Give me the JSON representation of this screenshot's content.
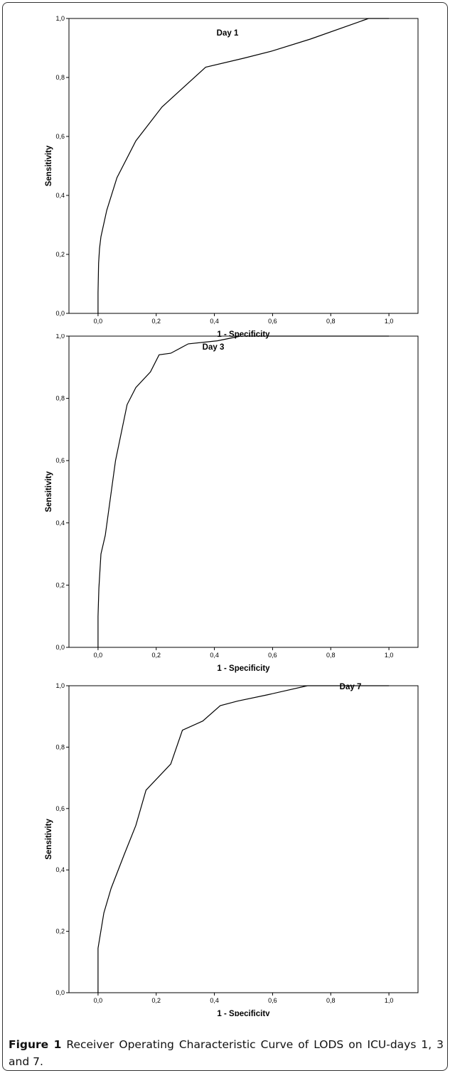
{
  "chart_data": [
    {
      "type": "line",
      "title": "Day 1",
      "xlabel": "1 - Specificity",
      "ylabel": "Sensitivity",
      "xlim": [
        -0.1,
        1.1
      ],
      "ylim": [
        0,
        1
      ],
      "xticks": [
        "0,0",
        "0,2",
        "0,4",
        "0,6",
        "0,8",
        "1,0"
      ],
      "yticks": [
        "0,0",
        "0,2",
        "0,4",
        "0,6",
        "0,8",
        "1,0"
      ],
      "grid": false,
      "x": [
        0,
        0,
        0.002,
        0.005,
        0.01,
        0.03,
        0.065,
        0.13,
        0.22,
        0.37,
        0.5,
        0.6,
        0.73,
        0.93,
        1.0
      ],
      "y": [
        0,
        0.07,
        0.17,
        0.22,
        0.26,
        0.35,
        0.46,
        0.585,
        0.7,
        0.835,
        0.865,
        0.89,
        0.93,
        1.0,
        1.0
      ]
    },
    {
      "type": "line",
      "title": "Day 3",
      "xlabel": "1 - Specificity",
      "ylabel": "Sensitivity",
      "xlim": [
        -0.1,
        1.1
      ],
      "ylim": [
        0,
        1
      ],
      "xticks": [
        "0,0",
        "0,2",
        "0,4",
        "0,6",
        "0,8",
        "1,0"
      ],
      "yticks": [
        "0,0",
        "0,2",
        "0,4",
        "0,6",
        "0,8",
        "1,0"
      ],
      "grid": false,
      "x": [
        0,
        0,
        0.003,
        0.01,
        0.025,
        0.06,
        0.1,
        0.13,
        0.18,
        0.21,
        0.25,
        0.31,
        0.41,
        0.49,
        0.6,
        1.0
      ],
      "y": [
        0,
        0.1,
        0.19,
        0.3,
        0.36,
        0.6,
        0.78,
        0.835,
        0.885,
        0.94,
        0.945,
        0.975,
        0.985,
        1.0,
        1.0,
        1.0
      ]
    },
    {
      "type": "line",
      "title": "Day 7",
      "xlabel": "1 - Specificity",
      "ylabel": "Sensitivity",
      "xlim": [
        -0.1,
        1.1
      ],
      "ylim": [
        0,
        1
      ],
      "xticks": [
        "0,0",
        "0,2",
        "0,4",
        "0,6",
        "0,8",
        "1,0"
      ],
      "yticks": [
        "0,0",
        "0,2",
        "0,4",
        "0,6",
        "0,8",
        "1,0"
      ],
      "grid": false,
      "x": [
        0,
        0,
        0.02,
        0.045,
        0.09,
        0.13,
        0.165,
        0.25,
        0.29,
        0.36,
        0.42,
        0.48,
        0.58,
        0.72,
        1.0
      ],
      "y": [
        0,
        0.145,
        0.26,
        0.34,
        0.45,
        0.545,
        0.66,
        0.745,
        0.855,
        0.885,
        0.935,
        0.95,
        0.97,
        1.0,
        1.0
      ]
    }
  ],
  "caption": {
    "label": "Figure 1",
    "text": " Receiver Operating Characteristic Curve of LODS on ICU-days 1, 3 and 7",
    "period": "."
  }
}
